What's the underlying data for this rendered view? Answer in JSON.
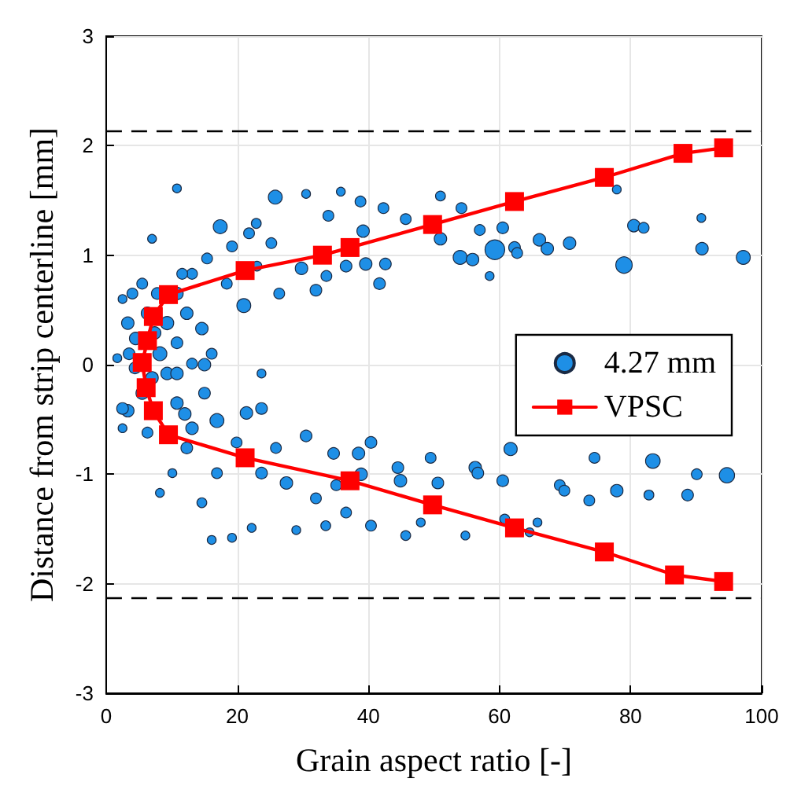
{
  "chart_data": {
    "type": "scatter",
    "xlabel": "Grain aspect ratio [-]",
    "ylabel": "Distance from strip centerline [mm]",
    "xlim": [
      0,
      100
    ],
    "xticks": [
      0,
      20,
      40,
      60,
      80,
      100
    ],
    "ylim": [
      -3,
      3
    ],
    "yticks": [
      -3,
      -2,
      -1,
      0,
      1,
      2,
      3
    ],
    "grid": true,
    "legend": "right",
    "ref_lines": [
      {
        "axis": "y",
        "value": 2.13,
        "color": "#000000",
        "line_style": "dashed"
      },
      {
        "axis": "y",
        "value": -2.13,
        "color": "#000000",
        "line_style": "dashed"
      }
    ],
    "series": [
      {
        "name": "4.27 mm",
        "type": "bubble",
        "color": "#1e8fe6",
        "marker": "circle",
        "x": [
          17.4,
          21,
          25.8,
          59.3,
          79,
          97.2,
          90.9,
          80.5,
          82,
          70.7,
          66.1,
          67.3,
          54,
          55.9,
          57,
          60.5,
          51,
          54.2,
          51,
          62.3,
          62.7,
          41.7,
          42.6,
          42.3,
          39.2,
          39.6,
          36.6,
          32,
          33.6,
          29.8,
          25.2,
          22.9,
          21.8,
          19.2,
          15.4,
          13.1,
          10.8,
          14.6,
          16.1,
          15,
          12.3,
          4,
          3.3,
          4.5,
          8.2,
          9.3,
          11.6,
          7,
          10.8,
          1.7,
          2.5,
          30.5,
          35.8,
          38.8,
          33.9,
          45.7,
          58.5,
          77.9,
          90.8,
          26.4,
          23,
          18.4,
          5.5,
          6.3,
          7.8,
          9.3,
          3.5,
          10.8,
          7.4,
          3.3,
          2.5,
          5.5,
          12,
          10.8,
          13.1,
          16.9,
          15,
          21.4,
          23.7,
          27.5,
          23.7,
          16.9,
          30.5,
          34.7,
          38.5,
          38.9,
          40.4,
          35.1,
          40.4,
          44.9,
          44.5,
          49.5,
          50.6,
          56.3,
          56.7,
          60.5,
          61.7,
          60.8,
          65.8,
          69.2,
          69.9,
          74.5,
          73.7,
          77.9,
          83.4,
          82.8,
          88.7,
          90.1,
          94.7,
          54.8,
          45.7,
          33.5,
          29,
          22.2,
          19.2,
          16.1,
          14.6,
          10.1,
          8.2,
          12.3,
          19.9,
          25.9,
          6.3,
          2.5,
          10.8,
          7,
          4.4,
          13.1,
          23.7,
          48,
          64.6,
          36.6,
          32
        ],
        "values": [
          1.26,
          0.54,
          1.53,
          1.05,
          0.91,
          0.98,
          1.06,
          1.27,
          1.25,
          1.11,
          1.14,
          1.06,
          0.98,
          0.96,
          1.23,
          1.25,
          1.15,
          1.43,
          1.54,
          1.07,
          1.02,
          0.74,
          0.92,
          1.43,
          1.22,
          0.92,
          0.9,
          0.68,
          0.81,
          0.88,
          1.11,
          1.29,
          1.2,
          1.08,
          0.97,
          0.83,
          0.65,
          0.33,
          0.1,
          0,
          0.47,
          0.65,
          0.38,
          0.24,
          0.1,
          0.38,
          0.83,
          1.15,
          1.61,
          0.06,
          0.6,
          1.56,
          1.58,
          1.49,
          1.36,
          1.33,
          0.81,
          1.6,
          1.34,
          0.65,
          0.9,
          0.74,
          0.74,
          0.47,
          0.65,
          -0.08,
          0.1,
          0.2,
          0.29,
          -0.42,
          -0.4,
          -0.26,
          -0.45,
          -0.35,
          -0.58,
          -0.51,
          -0.26,
          -0.44,
          -0.4,
          -1.08,
          -0.99,
          -0.99,
          -0.65,
          -0.81,
          -0.81,
          -1,
          -0.71,
          -1.1,
          -1.47,
          -1.06,
          -0.94,
          -0.85,
          -1.08,
          -0.94,
          -0.99,
          -1.06,
          -0.77,
          -1.41,
          -1.44,
          -1.1,
          -1.15,
          -0.85,
          -1.24,
          -1.15,
          -0.88,
          -1.19,
          -1.19,
          -1,
          -1.01,
          -1.56,
          -1.56,
          -1.47,
          -1.51,
          -1.49,
          -1.58,
          -1.6,
          -1.26,
          -0.99,
          -1.17,
          -0.76,
          -0.71,
          -0.76,
          -0.62,
          -0.58,
          -0.08,
          -0.12,
          -0.03,
          0.01,
          -0.08,
          -1.44,
          -1.53,
          -1.35,
          -1.22
        ],
        "sizes": [
          0.5,
          0.5,
          0.5,
          1,
          0.7,
          0.5,
          0.4,
          0.4,
          0.3,
          0.4,
          0.4,
          0.4,
          0.5,
          0.4,
          0.3,
          0.35,
          0.4,
          0.3,
          0.25,
          0.35,
          0.3,
          0.35,
          0.35,
          0.3,
          0.4,
          0.4,
          0.35,
          0.35,
          0.3,
          0.4,
          0.3,
          0.25,
          0.3,
          0.3,
          0.3,
          0.3,
          0.4,
          0.4,
          0.3,
          0.4,
          0.4,
          0.3,
          0.4,
          0.4,
          0.5,
          0.45,
          0.3,
          0.2,
          0.2,
          0.2,
          0.2,
          0.2,
          0.2,
          0.3,
          0.3,
          0.3,
          0.2,
          0.2,
          0.2,
          0.3,
          0.25,
          0.3,
          0.3,
          0.4,
          0.35,
          0.4,
          0.35,
          0.35,
          0.4,
          0.4,
          0.35,
          0.4,
          0.4,
          0.4,
          0.4,
          0.5,
          0.35,
          0.4,
          0.35,
          0.4,
          0.35,
          0.3,
          0.35,
          0.35,
          0.4,
          0.4,
          0.35,
          0.3,
          0.3,
          0.4,
          0.35,
          0.3,
          0.35,
          0.4,
          0.35,
          0.35,
          0.45,
          0.25,
          0.2,
          0.3,
          0.3,
          0.3,
          0.3,
          0.4,
          0.55,
          0.25,
          0.35,
          0.3,
          0.6,
          0.2,
          0.25,
          0.25,
          0.2,
          0.2,
          0.2,
          0.2,
          0.25,
          0.2,
          0.2,
          0.35,
          0.3,
          0.3,
          0.3,
          0.2,
          0.4,
          0.4,
          0.35,
          0.3,
          0.2,
          0.2,
          0.2,
          0.3,
          0.3
        ]
      },
      {
        "name": "VPSC",
        "type": "line",
        "color": "#ff0000",
        "marker": "square",
        "line_style": "solid",
        "x": [
          94.2,
          88,
          76,
          62.3,
          49.8,
          37.2,
          33,
          21.2,
          9.5,
          7.2,
          6.3,
          5.5,
          6.1,
          7.2,
          9.5,
          21.2,
          37.2,
          49.8,
          62.3,
          76,
          86.7,
          94.2
        ],
        "values": [
          1.98,
          1.93,
          1.71,
          1.49,
          1.28,
          1.07,
          1,
          0.86,
          0.64,
          0.44,
          0.22,
          0.02,
          -0.21,
          -0.42,
          -0.64,
          -0.85,
          -1.06,
          -1.28,
          -1.49,
          -1.71,
          -1.92,
          -1.98
        ]
      }
    ]
  }
}
